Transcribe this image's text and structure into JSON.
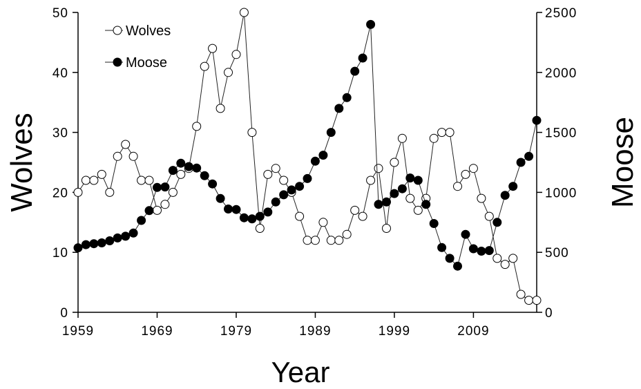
{
  "chart_data": {
    "type": "line",
    "xlabel": "Year",
    "ylabel_left": "Wolves",
    "ylabel_right": "Moose",
    "xlim": [
      1959,
      2017
    ],
    "ylim_left": [
      0,
      50
    ],
    "ylim_right": [
      0,
      2500
    ],
    "xticks": [
      1959,
      1969,
      1979,
      1989,
      1999,
      2009
    ],
    "yticks_left": [
      0,
      10,
      20,
      30,
      40,
      50
    ],
    "yticks_right": [
      0,
      500,
      1000,
      1500,
      2000,
      2500
    ],
    "legend_position": "top-left",
    "grid": false,
    "series": [
      {
        "name": "Wolves",
        "axis": "left",
        "marker": "open-circle",
        "x": [
          1959,
          1960,
          1961,
          1962,
          1963,
          1964,
          1965,
          1966,
          1967,
          1968,
          1969,
          1970,
          1971,
          1972,
          1973,
          1974,
          1975,
          1976,
          1977,
          1978,
          1979,
          1980,
          1981,
          1982,
          1983,
          1984,
          1985,
          1986,
          1987,
          1988,
          1989,
          1990,
          1991,
          1992,
          1993,
          1994,
          1995,
          1996,
          1997,
          1998,
          1999,
          2000,
          2001,
          2002,
          2003,
          2004,
          2005,
          2006,
          2007,
          2008,
          2009,
          2010,
          2011,
          2012,
          2013,
          2014,
          2015,
          2016,
          2017
        ],
        "values": [
          20,
          22,
          22,
          23,
          20,
          26,
          28,
          26,
          22,
          22,
          17,
          18,
          20,
          23,
          24,
          31,
          41,
          44,
          34,
          40,
          43,
          50,
          30,
          14,
          23,
          24,
          22,
          20,
          16,
          12,
          12,
          15,
          12,
          12,
          13,
          17,
          16,
          22,
          24,
          14,
          25,
          29,
          19,
          17,
          19,
          29,
          30,
          30,
          21,
          23,
          24,
          19,
          16,
          9,
          8,
          9,
          3,
          2,
          2
        ]
      },
      {
        "name": "Moose",
        "axis": "right",
        "marker": "filled-circle",
        "x": [
          1959,
          1960,
          1961,
          1962,
          1963,
          1964,
          1965,
          1966,
          1967,
          1968,
          1969,
          1970,
          1971,
          1972,
          1973,
          1974,
          1975,
          1976,
          1977,
          1978,
          1979,
          1980,
          1981,
          1982,
          1983,
          1984,
          1985,
          1986,
          1987,
          1988,
          1989,
          1990,
          1991,
          1992,
          1993,
          1994,
          1995,
          1996,
          1997,
          1998,
          1999,
          2000,
          2001,
          2002,
          2003,
          2004,
          2005,
          2006,
          2007,
          2008,
          2009,
          2010,
          2011,
          2012,
          2013,
          2014,
          2015,
          2016,
          2017
        ],
        "values": [
          538,
          564,
          572,
          579,
          596,
          620,
          634,
          661,
          766,
          848,
          1041,
          1045,
          1183,
          1243,
          1215,
          1203,
          1139,
          1070,
          949,
          861,
          857,
          788,
          779,
          800,
          836,
          920,
          980,
          1020,
          1050,
          1115,
          1260,
          1310,
          1500,
          1700,
          1790,
          2010,
          2120,
          2400,
          900,
          920,
          990,
          1030,
          1120,
          1100,
          900,
          740,
          540,
          450,
          385,
          650,
          530,
          510,
          515,
          750,
          975,
          1050,
          1250,
          1300,
          1600
        ]
      }
    ]
  }
}
